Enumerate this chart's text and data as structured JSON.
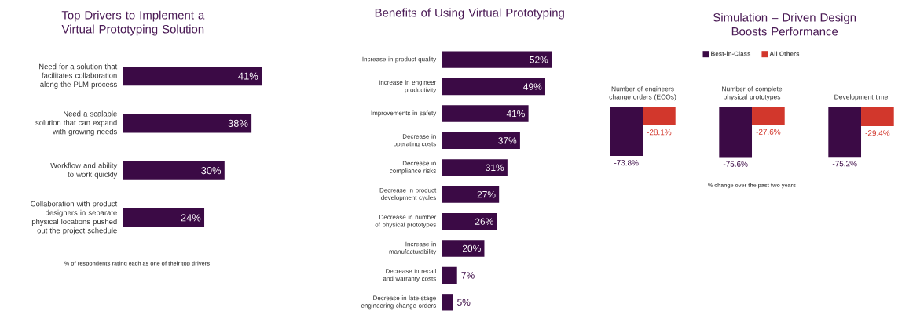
{
  "chart_data": [
    {
      "type": "bar",
      "orientation": "horizontal",
      "title": "Top Drivers to Implement a Virtual Prototyping Solution",
      "categories": [
        "Need for a solution that facilitates collaboration along the PLM process",
        "Need a scalable solution that can expand with growing needs",
        "Workflow and ability to work quickly",
        "Collaboration with product designers in separate physical locations pushed out the project schedule"
      ],
      "values": [
        41,
        38,
        30,
        24
      ],
      "color": "#3b0a45",
      "value_labels": [
        "41%",
        "38%",
        "30%",
        "24%"
      ],
      "annotations": [
        "% of respondents rating each as one of their top drivers"
      ]
    },
    {
      "type": "bar",
      "orientation": "horizontal",
      "title": "Benefits of Using Virtual Prototyping",
      "categories": [
        "Increase in product quality",
        "Increase in engineer productivity",
        "Improvements in safety",
        "Decrease in operating costs",
        "Decrease in compliance risks",
        "Decrease in product development cycles",
        "Decrease in number of physical prototypes",
        "Increase in manufacturability",
        "Decrease in recall and warranty costs",
        "Decrease in late-stage engineering change orders"
      ],
      "values": [
        52,
        49,
        41,
        37,
        31,
        27,
        26,
        20,
        7,
        5
      ],
      "color": "#3b0a45",
      "value_labels": [
        "52%",
        "49%",
        "41%",
        "37%",
        "31%",
        "27%",
        "26%",
        "20%",
        "7%",
        "5%"
      ]
    },
    {
      "type": "bar",
      "title": "Simulation – Driven Design Boosts Performance",
      "categories": [
        "Number of engineers change orders (ECOs)",
        "Number of complete physical prototypes",
        "Development time"
      ],
      "legend": "top",
      "series": [
        {
          "name": "Best-in-Class",
          "color": "#3b0a45",
          "values": [
            -73.8,
            -75.6,
            -75.2
          ],
          "value_labels": [
            "-73.8%",
            "-75.6%",
            "-75.2%"
          ]
        },
        {
          "name": "All Others",
          "color": "#d2372c",
          "values": [
            -28.1,
            -27.6,
            -29.4
          ],
          "value_labels": [
            "-28.1%",
            "-27.6%",
            "-29.4%"
          ]
        }
      ],
      "annotations": [
        "% change over the past two years"
      ]
    }
  ]
}
